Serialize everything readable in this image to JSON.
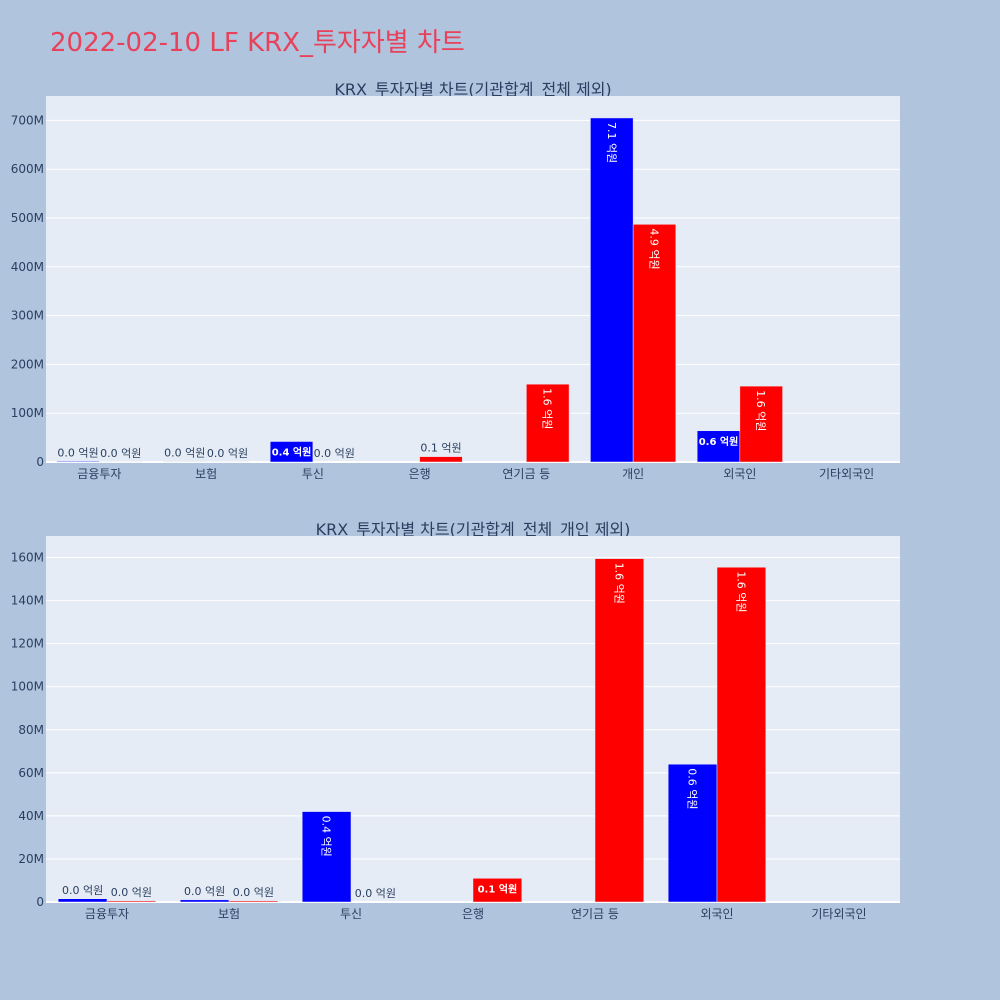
{
  "page": {
    "title": "2022-02-10 LF KRX_투자자별 차트"
  },
  "chart_data": [
    {
      "type": "bar",
      "title": "KRX_투자자별 차트(기관합계_전체 제외)",
      "categories": [
        "금융투자",
        "보험",
        "투신",
        "은행",
        "연기금 등",
        "개인",
        "외국인",
        "기타외국인"
      ],
      "series": [
        {
          "color": "#0000ff",
          "values": [
            1500000,
            1000000,
            42000000,
            0,
            0,
            705000000,
            64000000,
            0
          ],
          "labels": [
            "0.0 억원",
            "0.0 억원",
            "0.4 억원",
            "",
            "",
            "7.1 억원",
            "0.6 억원",
            ""
          ]
        },
        {
          "color": "#ff0000",
          "values": [
            500000,
            500000,
            0,
            11000000,
            159500000,
            487000000,
            155500000,
            0
          ],
          "labels": [
            "0.0 억원",
            "0.0 억원",
            "0.0 억원",
            "0.1 억원",
            "1.6 억원",
            "4.9 억원",
            "1.6 억원",
            ""
          ]
        }
      ],
      "yticks": [
        0,
        100000000,
        200000000,
        300000000,
        400000000,
        500000000,
        600000000,
        700000000
      ],
      "ytick_labels": [
        "0",
        "100M",
        "200M",
        "300M",
        "400M",
        "500M",
        "600M",
        "700M"
      ],
      "ylim": [
        0,
        750000000
      ],
      "grid": true,
      "legend": "none"
    },
    {
      "type": "bar",
      "title": "KRX_투자자별 차트(기관합계_전체_개인 제외)",
      "categories": [
        "금융투자",
        "보험",
        "투신",
        "은행",
        "연기금 등",
        "외국인",
        "기타외국인"
      ],
      "series": [
        {
          "color": "#0000ff",
          "values": [
            1500000,
            1000000,
            42000000,
            0,
            0,
            64000000,
            0
          ],
          "labels": [
            "0.0 억원",
            "0.0 억원",
            "0.4 억원",
            "",
            "",
            "0.6 억원",
            ""
          ]
        },
        {
          "color": "#ff0000",
          "values": [
            500000,
            500000,
            0,
            11000000,
            159500000,
            155500000,
            0
          ],
          "labels": [
            "0.0 억원",
            "0.0 억원",
            "0.0 억원",
            "0.1 억원",
            "1.6 억원",
            "1.6 억원",
            ""
          ]
        }
      ],
      "yticks": [
        0,
        20000000,
        40000000,
        60000000,
        80000000,
        100000000,
        120000000,
        140000000,
        160000000
      ],
      "ytick_labels": [
        "0",
        "20M",
        "40M",
        "60M",
        "80M",
        "100M",
        "120M",
        "140M",
        "160M"
      ],
      "ylim": [
        0,
        170000000
      ],
      "grid": true,
      "legend": "none"
    }
  ]
}
